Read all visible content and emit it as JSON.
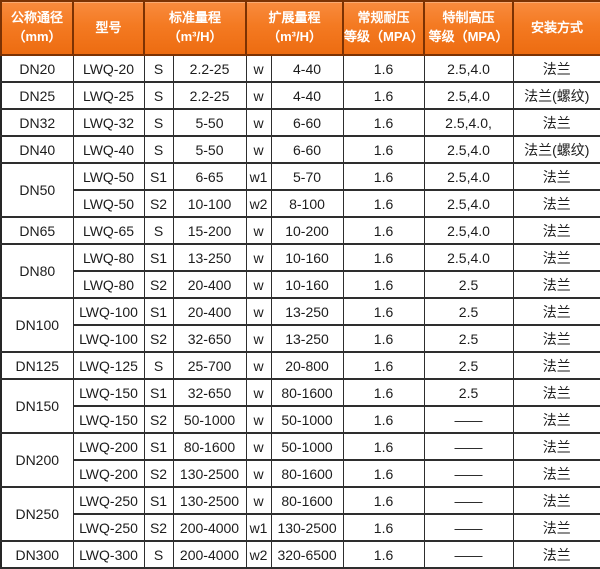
{
  "colors": {
    "header_bg_top": "#f98b3e",
    "header_bg_bottom": "#ed6c11",
    "header_border": "#7c3203",
    "header_text": "#ffffff",
    "grid_border": "#2e2e2e",
    "body_text": "#1c1c1c"
  },
  "table": {
    "headers": {
      "diameter": "公称通径\n（mm）",
      "model": "型号",
      "standard_range": "标准量程\n（m³/H）",
      "extended_range": "扩展量程\n（m³/H）",
      "pressure": "常规耐压\n等级（MPA）",
      "high_pressure": "特制高压\n等级（MPA）",
      "install": "安装方式"
    },
    "rows": [
      {
        "dn": "DN20",
        "dn_rowspan": 1,
        "model": "LWQ-20",
        "s": "S",
        "std": "2.2-25",
        "w": "w",
        "ext": "4-40",
        "pressure": "1.6",
        "high_pressure": "2.5,4.0",
        "install": "法兰"
      },
      {
        "dn": "DN25",
        "dn_rowspan": 1,
        "model": "LWQ-25",
        "s": "S",
        "std": "2.2-25",
        "w": "w",
        "ext": "4-40",
        "pressure": "1.6",
        "high_pressure": "2.5,4.0",
        "install": "法兰(螺纹)"
      },
      {
        "dn": "DN32",
        "dn_rowspan": 1,
        "model": "LWQ-32",
        "s": "S",
        "std": "5-50",
        "w": "w",
        "ext": "6-60",
        "pressure": "1.6",
        "high_pressure": "2.5,4.0,",
        "install": "法兰"
      },
      {
        "dn": "DN40",
        "dn_rowspan": 1,
        "model": "LWQ-40",
        "s": "S",
        "std": "5-50",
        "w": "w",
        "ext": "6-60",
        "pressure": "1.6",
        "high_pressure": "2.5,4.0",
        "install": "法兰(螺纹)"
      },
      {
        "dn": "DN50",
        "dn_rowspan": 2,
        "model": "LWQ-50",
        "s": "S1",
        "std": "6-65",
        "w": "w1",
        "ext": "5-70",
        "pressure": "1.6",
        "high_pressure": "2.5,4.0",
        "install": "法兰"
      },
      {
        "dn": null,
        "model": "LWQ-50",
        "s": "S2",
        "std": "10-100",
        "w": "w2",
        "ext": "8-100",
        "pressure": "1.6",
        "high_pressure": "2.5,4.0",
        "install": "法兰"
      },
      {
        "dn": "DN65",
        "dn_rowspan": 1,
        "model": "LWQ-65",
        "s": "S",
        "std": "15-200",
        "w": "w",
        "ext": "10-200",
        "pressure": "1.6",
        "high_pressure": "2.5,4.0",
        "install": "法兰"
      },
      {
        "dn": "DN80",
        "dn_rowspan": 2,
        "model": "LWQ-80",
        "s": "S1",
        "std": "13-250",
        "w": "w",
        "ext": "10-160",
        "pressure": "1.6",
        "high_pressure": "2.5,4.0",
        "install": "法兰"
      },
      {
        "dn": null,
        "model": "LWQ-80",
        "s": "S2",
        "std": "20-400",
        "w": "w",
        "ext": "10-160",
        "pressure": "1.6",
        "high_pressure": "2.5",
        "install": "法兰"
      },
      {
        "dn": "DN100",
        "dn_rowspan": 2,
        "model": "LWQ-100",
        "s": "S1",
        "std": "20-400",
        "w": "w",
        "ext": "13-250",
        "pressure": "1.6",
        "high_pressure": "2.5",
        "install": "法兰"
      },
      {
        "dn": null,
        "model": "LWQ-100",
        "s": "S2",
        "std": "32-650",
        "w": "w",
        "ext": "13-250",
        "pressure": "1.6",
        "high_pressure": "2.5",
        "install": "法兰"
      },
      {
        "dn": "DN125",
        "dn_rowspan": 1,
        "model": "LWQ-125",
        "s": "S",
        "std": "25-700",
        "w": "w",
        "ext": "20-800",
        "pressure": "1.6",
        "high_pressure": "2.5",
        "install": "法兰"
      },
      {
        "dn": "DN150",
        "dn_rowspan": 2,
        "model": "LWQ-150",
        "s": "S1",
        "std": "32-650",
        "w": "w",
        "ext": "80-1600",
        "pressure": "1.6",
        "high_pressure": "2.5",
        "install": "法兰"
      },
      {
        "dn": null,
        "model": "LWQ-150",
        "s": "S2",
        "std": "50-1000",
        "w": "w",
        "ext": "50-1000",
        "pressure": "1.6",
        "high_pressure": "——",
        "install": "法兰"
      },
      {
        "dn": "DN200",
        "dn_rowspan": 2,
        "model": "LWQ-200",
        "s": "S1",
        "std": "80-1600",
        "w": "w",
        "ext": "50-1000",
        "pressure": "1.6",
        "high_pressure": "——",
        "install": "法兰"
      },
      {
        "dn": null,
        "model": "LWQ-200",
        "s": "S2",
        "std": "130-2500",
        "w": "w",
        "ext": "80-1600",
        "pressure": "1.6",
        "high_pressure": "——",
        "install": "法兰"
      },
      {
        "dn": "DN250",
        "dn_rowspan": 2,
        "model": "LWQ-250",
        "s": "S1",
        "std": "130-2500",
        "w": "w",
        "ext": "80-1600",
        "pressure": "1.6",
        "high_pressure": "——",
        "install": "法兰"
      },
      {
        "dn": null,
        "model": "LWQ-250",
        "s": "S2",
        "std": "200-4000",
        "w": "w1",
        "ext": "130-2500",
        "pressure": "1.6",
        "high_pressure": "——",
        "install": "法兰"
      },
      {
        "dn": "DN300",
        "dn_rowspan": 1,
        "model": "LWQ-300",
        "s": "S",
        "std": "200-4000",
        "w": "w2",
        "ext": "320-6500",
        "pressure": "1.6",
        "high_pressure": "——",
        "install": "法兰"
      }
    ]
  }
}
